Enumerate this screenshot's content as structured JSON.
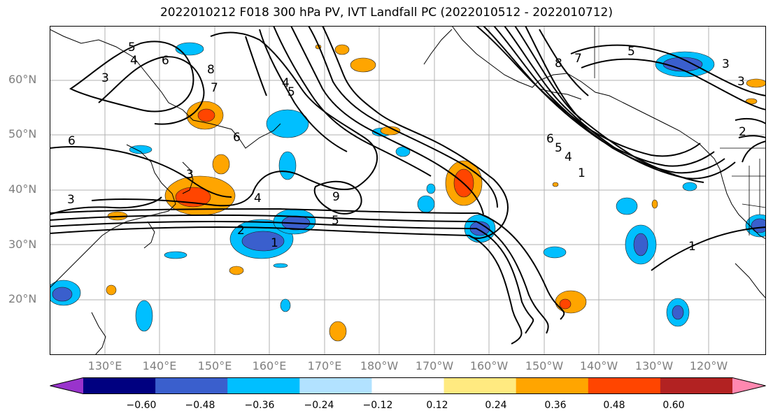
{
  "title": "2022010212 F018 300 hPa PV, IVT Landfall PC (2022010512 - 2022010712)",
  "lat_labels": [
    "60°N",
    "50°N",
    "40°N",
    "30°N",
    "20°N"
  ],
  "lon_labels": [
    "130°E",
    "140°E",
    "150°E",
    "160°E",
    "170°E",
    "180°W",
    "170°W",
    "160°W",
    "150°W",
    "140°W",
    "130°W",
    "120°W"
  ],
  "colorbar": {
    "colors": [
      "#9933cc",
      "#000080",
      "#3a5fcd",
      "#00bfff",
      "#b2e2ff",
      "#ffffff",
      "#ffea80",
      "#ffa500",
      "#ff4500",
      "#b22222",
      "#ff88b0"
    ],
    "ticks": [
      "−0.60",
      "−0.48",
      "−0.36",
      "−0.24",
      "−0.12",
      "0.12",
      "0.24",
      "0.36",
      "0.48",
      "0.60"
    ]
  },
  "contour_labels": [
    "5",
    "4",
    "3",
    "6",
    "8",
    "7",
    "6",
    "3",
    "5",
    "6",
    "4",
    "3",
    "2",
    "1",
    "4",
    "5",
    "9",
    "8",
    "7",
    "5",
    "3",
    "3",
    "6",
    "5",
    "4",
    "1",
    "2",
    "1"
  ]
}
